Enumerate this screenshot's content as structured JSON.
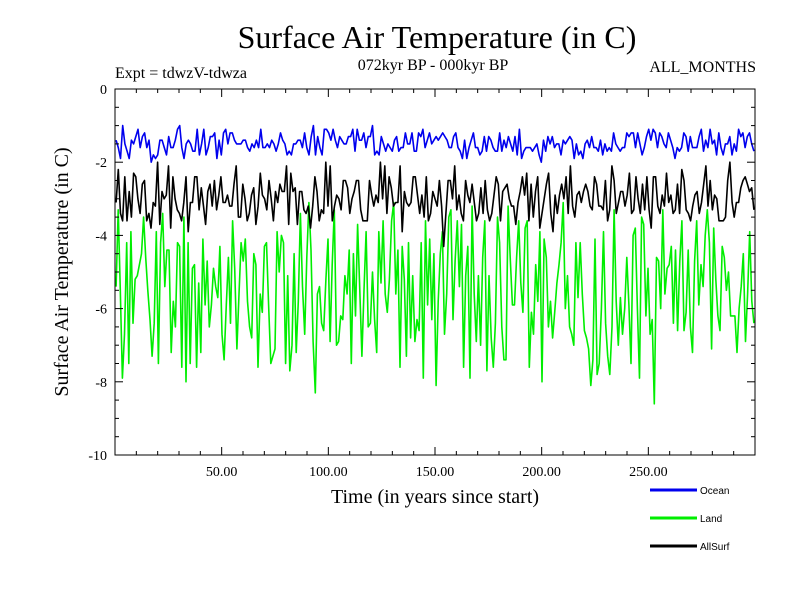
{
  "chart_data": {
    "type": "line",
    "title": "Surface Air Temperature (in C)",
    "subtitle_left": "Expt = tdwzV-tdwza",
    "subtitle_center": "072kyr BP - 000kyr BP",
    "subtitle_right": "ALL_MONTHS",
    "xlabel": "Time (in years since start)",
    "ylabel": "Surface Air Temperature (in C)",
    "xlim": [
      0,
      300
    ],
    "ylim": [
      -10,
      0
    ],
    "x_ticks": [
      50,
      100,
      150,
      200,
      250
    ],
    "x_tick_labels": [
      "50.00",
      "100.00",
      "150.00",
      "200.00",
      "250.00"
    ],
    "y_ticks": [
      0,
      -2,
      -4,
      -6,
      -8,
      -10
    ],
    "y_tick_labels": [
      "0",
      "-2",
      "-4",
      "-6",
      "-8",
      "-10"
    ],
    "grid": false,
    "legend_position": "bottom-right",
    "series": [
      {
        "name": "Land",
        "color": "#00ee00",
        "mean": -5.4,
        "range": [
          -8.6,
          -3.0
        ],
        "values": [
          -5.4,
          -3.3,
          -5.5,
          -7.9,
          -6.7,
          -4.2,
          -7.5,
          -3.9,
          -6.4,
          -5.2,
          -5.1,
          -4.8,
          -4.5,
          -3.5,
          -4.6,
          -5.5,
          -6.3,
          -7.3,
          -6.4,
          -3.9,
          -7.5,
          -4.2,
          -3.4,
          -5.4,
          -4.4,
          -4.4,
          -7.2,
          -5.8,
          -6.5,
          -4.2,
          -4.3,
          -7.6,
          -3.5,
          -8.0,
          -4.2,
          -7.5,
          -4.9,
          -4.8,
          -7.6,
          -5.3,
          -7.2,
          -4.1,
          -5.9,
          -4.7,
          -6.5,
          -5.9,
          -4.9,
          -5.4,
          -5.7,
          -4.3,
          -6.7,
          -7.4,
          -5.9,
          -4.6,
          -6.4,
          -3.6,
          -4.9,
          -7.1,
          -5.6,
          -4.2,
          -4.7,
          -4.1,
          -5.8,
          -6.5,
          -6.8,
          -4.5,
          -4.8,
          -7.6,
          -5.6,
          -6.1,
          -4.3,
          -4.2,
          -5.9,
          -7.5,
          -7.3,
          -7.1,
          -3.9,
          -5.0,
          -4.0,
          -4.2,
          -7.5,
          -5.1,
          -7.7,
          -7.0,
          -4.5,
          -7.2,
          -5.8,
          -3.4,
          -5.4,
          -6.7,
          -4.6,
          -3.1,
          -4.4,
          -6.9,
          -8.3,
          -5.6,
          -5.4,
          -6.4,
          -6.6,
          -5.2,
          -4.1,
          -6.9,
          -4.8,
          -3.3,
          -7.0,
          -6.9,
          -6.2,
          -6.3,
          -5.1,
          -5.6,
          -4.4,
          -7.5,
          -4.5,
          -6.2,
          -3.7,
          -5.5,
          -7.3,
          -5.5,
          -3.9,
          -6.5,
          -6.4,
          -5.0,
          -6.3,
          -7.2,
          -3.9,
          -5.3,
          -3.6,
          -5.6,
          -6.1,
          -5.2,
          -3.6,
          -3.1,
          -5.6,
          -4.4,
          -7.6,
          -4.3,
          -5.2,
          -7.3,
          -4.2,
          -6.8,
          -5.1,
          -6.9,
          -6.3,
          -6.6,
          -4.2,
          -7.9,
          -3.6,
          -5.9,
          -4.1,
          -6.3,
          -4.5,
          -8.1,
          -5.8,
          -4.5,
          -3.9,
          -6.7,
          -5.6,
          -3.5,
          -3.3,
          -6.3,
          -4.7,
          -3.6,
          -5.4,
          -3.7,
          -7.6,
          -5.1,
          -4.3,
          -7.9,
          -3.2,
          -5.6,
          -6.9,
          -5.1,
          -7.0,
          -4.6,
          -3.6,
          -7.7,
          -5.1,
          -6.8,
          -7.6,
          -6.4,
          -3.5,
          -4.2,
          -6.5,
          -7.4,
          -7.4,
          -3.2,
          -4.6,
          -5.9,
          -5.9,
          -4.6,
          -3.6,
          -5.3,
          -6.1,
          -3.8,
          -3.6,
          -7.6,
          -6.1,
          -6.7,
          -4.8,
          -5.8,
          -3.9,
          -8.0,
          -4.1,
          -4.6,
          -6.5,
          -5.8,
          -6.8,
          -6.1,
          -5.3,
          -4.8,
          -4.2,
          -3.1,
          -6.0,
          -5.1,
          -6.5,
          -6.7,
          -7.0,
          -4.2,
          -5.7,
          -4.2,
          -5.6,
          -6.6,
          -6.8,
          -7.1,
          -8.1,
          -7.4,
          -4.1,
          -7.8,
          -7.5,
          -6.0,
          -3.9,
          -6.4,
          -7.3,
          -7.8,
          -6.5,
          -3.3,
          -5.8,
          -7.0,
          -5.7,
          -6.7,
          -6.0,
          -4.6,
          -5.9,
          -7.5,
          -4.0,
          -3.8,
          -6.0,
          -7.9,
          -3.5,
          -3.7,
          -6.2,
          -4.9,
          -6.7,
          -6.3,
          -8.6,
          -4.6,
          -4.7,
          -6.0,
          -3.3,
          -5.6,
          -4.9,
          -4.8,
          -4.3,
          -6.4,
          -4.4,
          -6.6,
          -4.7,
          -3.6,
          -6.6,
          -6.1,
          -4.4,
          -6.5,
          -7.2,
          -4.7,
          -3.6,
          -5.9,
          -4.8,
          -5.4,
          -4.0,
          -3.3,
          -4.2,
          -7.1,
          -3.8,
          -5.2,
          -6.2,
          -6.6,
          -4.3,
          -4.6,
          -5.5,
          -5.0,
          -6.2,
          -6.2,
          -6.2,
          -7.2,
          -6.0,
          -5.4,
          -4.5,
          -6.9,
          -5.6,
          -3.9,
          -5.8,
          -6.4
        ]
      },
      {
        "name": "AllSurf",
        "color": "#000000",
        "mean": -2.95,
        "range": [
          -4.4,
          -1.8
        ],
        "values": [
          -3.1,
          -2.2,
          -3.4,
          -3.6,
          -2.4,
          -3.6,
          -2.8,
          -3.5,
          -2.3,
          -2.4,
          -3.0,
          -3.4,
          -2.6,
          -2.5,
          -3.6,
          -3.4,
          -3.8,
          -3.1,
          -3.2,
          -2.0,
          -3.7,
          -2.8,
          -3.0,
          -2.9,
          -2.1,
          -3.8,
          -2.4,
          -3.0,
          -3.3,
          -3.4,
          -3.6,
          -3.1,
          -2.4,
          -3.9,
          -3.1,
          -3.1,
          -2.4,
          -2.4,
          -3.3,
          -2.7,
          -3.2,
          -3.7,
          -2.8,
          -2.6,
          -3.2,
          -2.5,
          -3.3,
          -2.9,
          -2.4,
          -3.1,
          -3.1,
          -2.9,
          -3.2,
          -3.2,
          -2.6,
          -2.1,
          -3.5,
          -3.5,
          -2.6,
          -3.0,
          -3.6,
          -3.4,
          -2.9,
          -2.7,
          -3.7,
          -3.2,
          -2.3,
          -2.9,
          -3.0,
          -3.3,
          -2.5,
          -3.0,
          -3.6,
          -2.8,
          -3.1,
          -2.6,
          -2.8,
          -2.8,
          -2.1,
          -3.7,
          -2.3,
          -2.8,
          -2.7,
          -3.7,
          -2.8,
          -2.8,
          -3.3,
          -3.4,
          -3.2,
          -3.8,
          -3.2,
          -2.4,
          -2.8,
          -3.6,
          -3.3,
          -3.4,
          -2.0,
          -3.2,
          -2.1,
          -3.6,
          -3.2,
          -2.9,
          -3.0,
          -3.3,
          -2.5,
          -2.5,
          -2.7,
          -3.4,
          -3.0,
          -2.8,
          -2.5,
          -2.5,
          -3.3,
          -3.6,
          -3.6,
          -3.6,
          -2.5,
          -2.9,
          -3.2,
          -2.9,
          -3.1,
          -2.0,
          -3.0,
          -2.1,
          -3.4,
          -2.4,
          -2.7,
          -3.2,
          -3.1,
          -3.1,
          -2.1,
          -3.9,
          -2.8,
          -3.1,
          -3.2,
          -3.1,
          -2.4,
          -2.4,
          -2.9,
          -3.4,
          -2.9,
          -3.5,
          -2.4,
          -3.6,
          -3.4,
          -2.8,
          -3.0,
          -3.2,
          -2.5,
          -3.2,
          -4.3,
          -3.4,
          -2.5,
          -2.5,
          -3.0,
          -2.1,
          -3.3,
          -2.9,
          -3.4,
          -3.6,
          -2.5,
          -2.9,
          -3.1,
          -2.6,
          -3.1,
          -3.6,
          -3.4,
          -2.7,
          -3.4,
          -2.5,
          -3.3,
          -3.6,
          -3.4,
          -2.9,
          -2.4,
          -2.6,
          -3.6,
          -2.8,
          -2.7,
          -2.6,
          -3.0,
          -3.2,
          -3.2,
          -3.7,
          -3.1,
          -2.8,
          -2.4,
          -2.9,
          -2.3,
          -3.6,
          -2.6,
          -3.5,
          -2.8,
          -2.4,
          -3.8,
          -3.4,
          -3.0,
          -2.6,
          -2.3,
          -3.4,
          -3.9,
          -2.9,
          -3.4,
          -2.9,
          -2.6,
          -3.0,
          -2.4,
          -3.4,
          -2.1,
          -3.2,
          -3.5,
          -2.9,
          -2.8,
          -3.1,
          -2.8,
          -2.6,
          -2.8,
          -3.2,
          -3.3,
          -2.4,
          -2.6,
          -3.2,
          -3.2,
          -3.3,
          -2.5,
          -3.6,
          -3.3,
          -2.1,
          -2.5,
          -3.4,
          -3.1,
          -2.8,
          -2.8,
          -3.2,
          -2.9,
          -2.3,
          -3.4,
          -3.3,
          -2.4,
          -3.0,
          -3.4,
          -2.6,
          -3.3,
          -2.4,
          -3.3,
          -3.8,
          -2.4,
          -2.4,
          -3.2,
          -3.4,
          -2.9,
          -3.2,
          -2.3,
          -3.1,
          -2.9,
          -3.4,
          -3.3,
          -2.6,
          -3.4,
          -2.2,
          -2.5,
          -3.3,
          -3.4,
          -3.6,
          -3.2,
          -2.9,
          -2.8,
          -3.4,
          -3.1,
          -2.6,
          -2.1,
          -3.2,
          -2.5,
          -3.3,
          -2.9,
          -3.0,
          -3.6,
          -3.6,
          -3.6,
          -3.5,
          -2.5,
          -2.0,
          -3.1,
          -3.5,
          -3.1,
          -3.1,
          -2.7,
          -2.5,
          -2.4,
          -2.6,
          -2.8,
          -2.7,
          -3.3
        ]
      },
      {
        "name": "Ocean",
        "color": "#0000ee",
        "mean": -1.5,
        "range": [
          -2.3,
          -0.8
        ],
        "values": [
          -1.4,
          -1.6,
          -1.9,
          -1.0,
          -1.5,
          -1.7,
          -1.9,
          -1.4,
          -1.5,
          -1.3,
          -1.1,
          -1.6,
          -1.3,
          -1.2,
          -1.6,
          -1.4,
          -2.0,
          -1.8,
          -1.9,
          -1.8,
          -1.4,
          -1.4,
          -1.6,
          -1.8,
          -1.3,
          -1.6,
          -1.6,
          -1.4,
          -1.1,
          -1.0,
          -1.6,
          -1.9,
          -1.5,
          -1.4,
          -1.5,
          -1.7,
          -1.7,
          -1.1,
          -1.8,
          -1.5,
          -1.1,
          -1.8,
          -1.6,
          -1.3,
          -1.3,
          -1.2,
          -1.9,
          -1.4,
          -1.8,
          -1.2,
          -1.1,
          -1.5,
          -1.2,
          -1.2,
          -1.4,
          -1.5,
          -1.5,
          -1.5,
          -1.4,
          -1.4,
          -1.6,
          -1.7,
          -1.5,
          -1.6,
          -1.4,
          -1.6,
          -1.1,
          -1.6,
          -1.6,
          -1.5,
          -1.6,
          -1.4,
          -1.5,
          -1.7,
          -1.5,
          -1.2,
          -1.4,
          -1.5,
          -1.8,
          -1.7,
          -1.8,
          -1.5,
          -1.5,
          -1.4,
          -1.4,
          -1.6,
          -1.2,
          -1.6,
          -1.8,
          -1.3,
          -1.0,
          -1.8,
          -1.3,
          -1.6,
          -1.8,
          -1.1,
          -1.1,
          -1.2,
          -1.4,
          -1.1,
          -1.4,
          -1.6,
          -1.3,
          -1.4,
          -1.5,
          -1.5,
          -1.3,
          -1.3,
          -1.1,
          -1.7,
          -1.1,
          -1.4,
          -1.4,
          -1.2,
          -1.6,
          -1.3,
          -1.3,
          -1.0,
          -1.8,
          -1.7,
          -1.8,
          -1.3,
          -1.5,
          -1.7,
          -1.5,
          -1.6,
          -1.7,
          -1.4,
          -1.3,
          -1.7,
          -1.6,
          -1.6,
          -1.2,
          -1.5,
          -1.5,
          -1.2,
          -1.7,
          -1.7,
          -1.2,
          -1.3,
          -1.1,
          -1.6,
          -1.4,
          -1.2,
          -1.5,
          -1.4,
          -1.3,
          -1.4,
          -1.3,
          -1.2,
          -1.3,
          -1.4,
          -1.6,
          -1.6,
          -1.3,
          -1.2,
          -1.6,
          -1.7,
          -1.9,
          -1.4,
          -1.9,
          -1.6,
          -1.4,
          -1.2,
          -1.6,
          -1.6,
          -1.8,
          -1.7,
          -1.3,
          -1.7,
          -1.3,
          -1.4,
          -1.6,
          -1.7,
          -1.7,
          -1.2,
          -1.7,
          -1.4,
          -1.6,
          -1.3,
          -1.5,
          -1.7,
          -1.3,
          -1.8,
          -1.1,
          -1.9,
          -1.7,
          -1.6,
          -1.6,
          -1.6,
          -1.7,
          -1.6,
          -1.5,
          -1.8,
          -2.0,
          -1.4,
          -1.7,
          -1.3,
          -1.5,
          -1.3,
          -1.6,
          -1.5,
          -1.5,
          -1.8,
          -1.4,
          -1.5,
          -1.4,
          -1.3,
          -1.4,
          -1.9,
          -1.5,
          -1.8,
          -1.7,
          -1.9,
          -1.5,
          -1.4,
          -1.6,
          -1.3,
          -1.6,
          -1.6,
          -1.7,
          -1.4,
          -1.8,
          -1.5,
          -1.7,
          -1.6,
          -1.7,
          -1.2,
          -1.5,
          -1.6,
          -1.7,
          -1.6,
          -1.6,
          -1.2,
          -1.3,
          -1.2,
          -1.2,
          -1.6,
          -1.2,
          -1.5,
          -1.8,
          -1.6,
          -1.3,
          -1.1,
          -1.4,
          -1.1,
          -1.2,
          -1.6,
          -1.2,
          -1.3,
          -1.5,
          -1.6,
          -1.2,
          -1.4,
          -1.6,
          -1.9,
          -1.6,
          -1.7,
          -1.6,
          -1.2,
          -1.3,
          -1.7,
          -1.3,
          -1.6,
          -1.6,
          -1.6,
          -1.3,
          -1.1,
          -1.7,
          -1.4,
          -1.6,
          -1.1,
          -1.5,
          -1.4,
          -1.8,
          -1.2,
          -1.6,
          -1.8,
          -1.5,
          -1.5,
          -1.3,
          -1.8,
          -1.5,
          -1.7,
          -1.1,
          -1.3,
          -1.2,
          -1.6,
          -1.3,
          -1.2,
          -1.5,
          -1.7
        ]
      }
    ],
    "legend": [
      {
        "name": "Ocean",
        "color": "#0000ee"
      },
      {
        "name": "Land",
        "color": "#00ee00"
      },
      {
        "name": "AllSurf",
        "color": "#000000"
      }
    ]
  }
}
